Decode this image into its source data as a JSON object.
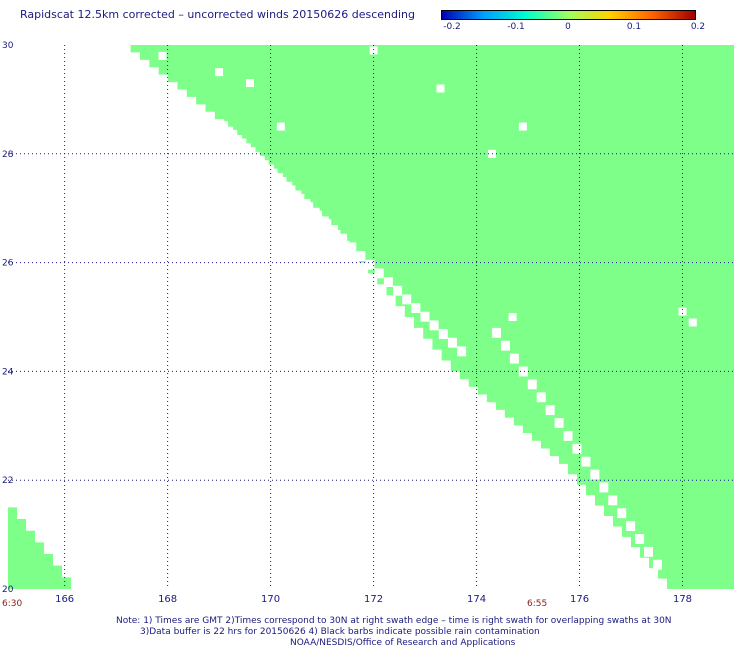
{
  "title": "Rapidscat 12.5km corrected – uncorrected winds 20150626 descending",
  "colorbar": {
    "labels": [
      "-0.2",
      "-0.1",
      "0",
      "0.1",
      "0.2"
    ],
    "stops": [
      "#0000b4",
      "#00a0ff",
      "#00ffd0",
      "#a0ff60",
      "#ffd000",
      "#ff6000",
      "#a00000"
    ]
  },
  "times": {
    "start": "6:30",
    "mid": "6:55"
  },
  "notes": {
    "line1": "Note: 1) Times are GMT 2)Times correspond to 30N at right swath edge – time is right swath for overlapping swaths at 30N",
    "line2": "3)Data buffer is 22 hrs for 20150626 4) Black barbs indicate possible rain contamination",
    "line3": "NOAA/NESDIS/Office of Research and Applications"
  },
  "chart_data": {
    "type": "heatmap",
    "title": "Rapidscat 12.5km corrected – uncorrected winds 20150626 descending",
    "xlim": [
      164.9,
      179.0
    ],
    "ylim": [
      20,
      30
    ],
    "x_ticks": [
      "166",
      "168",
      "170",
      "172",
      "174",
      "176",
      "178"
    ],
    "y_ticks": [
      "20",
      "22",
      "24",
      "26",
      "28",
      "30"
    ],
    "grid": true,
    "fill_color": "#7dff8a",
    "value_range": [
      -0.2,
      0.2
    ],
    "predominant_value": 0,
    "swaths": [
      {
        "name": "",
        "boundary": [
          [
            164.9,
            21.5
          ],
          [
            166.1,
            20.0
          ]
        ]
      },
      {
        "name": "",
        "inner_edge": [
          [
            167.1,
            30.0
          ],
          [
            169.1,
            28.5
          ],
          [
            171.0,
            26.8
          ],
          [
            173.5,
            24.0
          ],
          [
            175.6,
            22.3
          ],
          [
            177.7,
            20.0
          ]
        ]
      }
    ],
    "gap_bands": [
      {
        "start": [
          169.0,
          28.6
        ],
        "end": [
          173.8,
          24.3
        ]
      },
      {
        "start": [
          174.3,
          24.8
        ],
        "end": [
          177.6,
          20.3
        ]
      }
    ],
    "missing_points": [
      [
        172.0,
        29.9
      ],
      [
        173.3,
        29.2
      ],
      [
        174.9,
        28.5
      ],
      [
        174.3,
        28.0
      ],
      [
        174.7,
        25.0
      ],
      [
        178.0,
        25.1
      ],
      [
        178.2,
        24.9
      ],
      [
        170.2,
        28.5
      ],
      [
        167.9,
        29.8
      ],
      [
        169.0,
        29.5
      ],
      [
        169.6,
        29.3
      ]
    ]
  }
}
